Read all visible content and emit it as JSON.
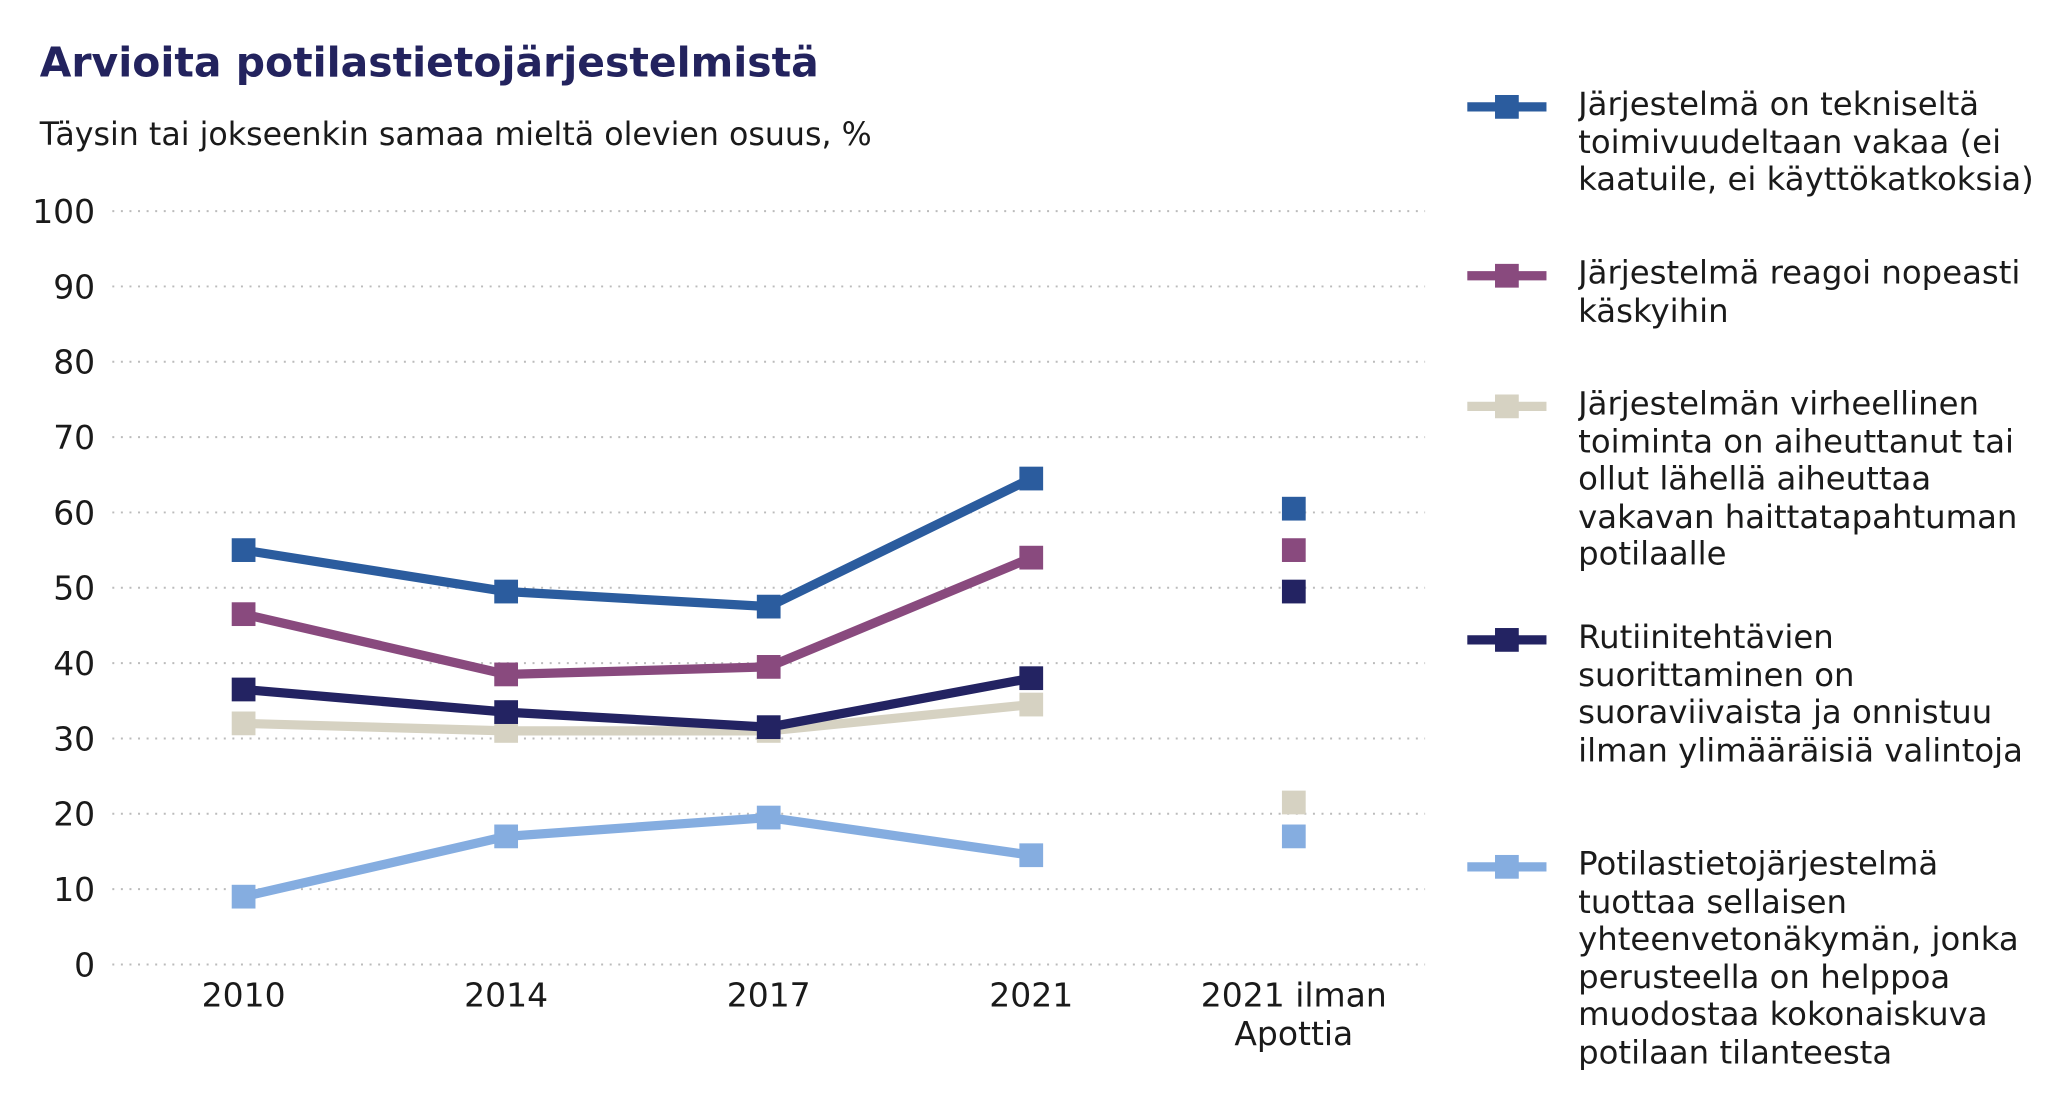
{
  "chart_data": {
    "type": "line",
    "title": "Arvioita potilastietojärjestelmistä",
    "subtitle": "Täysin tai jokseenkin samaa mieltä olevien osuus, %",
    "categories": [
      "2010",
      "2014",
      "2017",
      "2021",
      "2021 ilman Apottia"
    ],
    "standalone_categories": [
      4
    ],
    "series": [
      {
        "name": "Järjestelmä on tekniseltä toimivuudeltaan vakaa (ei kaatuile, ei käyttökatkoksia)",
        "color": "#2b5c9e",
        "values": [
          55,
          49.5,
          47.5,
          64.5,
          60.5
        ]
      },
      {
        "name": "Järjestelmä reagoi nopeasti käskyihin",
        "color": "#894a7e",
        "values": [
          46.5,
          38.5,
          39.5,
          54,
          55
        ]
      },
      {
        "name": "Järjestelmän virheellinen toiminta on aiheuttanut tai ollut lähellä aiheuttaa vakavan haittatapahtuman potilaalle",
        "color": "#d6d2c2",
        "values": [
          32,
          31,
          31,
          34.5,
          21.5
        ]
      },
      {
        "name": "Rutiinitehtävien suorittaminen on suoraviivaista ja onnistuu ilman ylimääräisiä valintoja",
        "color": "#232362",
        "values": [
          36.5,
          33.5,
          31.5,
          38,
          49.5
        ]
      },
      {
        "name": "Potilastietojärjestelmä tuottaa sellaisen yhteenvetonäkymän, jonka perusteella on helppoa muodostaa kokonaiskuva potilaan tilanteesta",
        "color": "#85ade0",
        "values": [
          9,
          17,
          19.5,
          14.5,
          17
        ]
      }
    ],
    "ylim": [
      0,
      100
    ],
    "yticks": [
      0,
      10,
      20,
      30,
      40,
      50,
      60,
      70,
      80,
      90,
      100
    ],
    "grid": true,
    "legend": "right"
  }
}
